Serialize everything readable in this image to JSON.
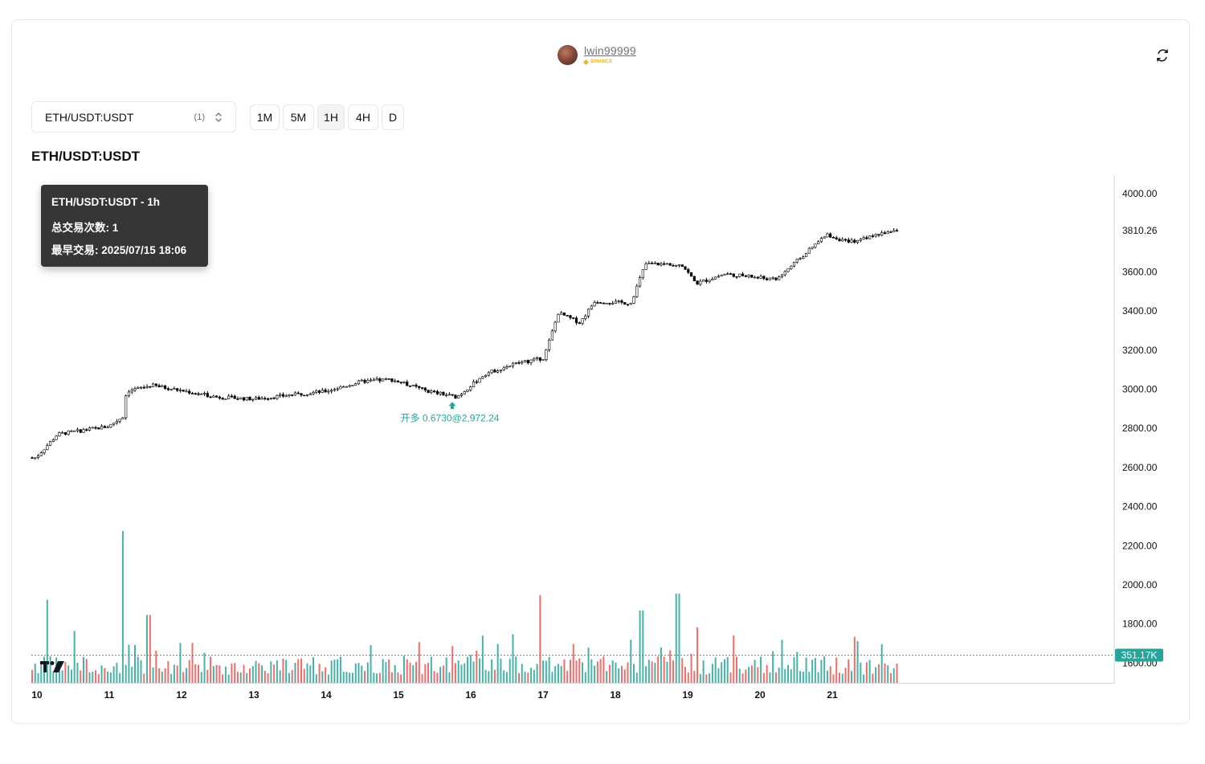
{
  "user": {
    "username": "lwin99999",
    "exchange": "BINANCE"
  },
  "header": {
    "refresh_icon": "refresh-icon"
  },
  "symbol_select": {
    "value": "ETH/USDT:USDT",
    "count": "(1)"
  },
  "timeframes": [
    {
      "label": "1M",
      "active": false
    },
    {
      "label": "5M",
      "active": false
    },
    {
      "label": "1H",
      "active": true
    },
    {
      "label": "4H",
      "active": false
    },
    {
      "label": "D",
      "active": false
    }
  ],
  "chart_title": "ETH/USDT:USDT",
  "tooltip": {
    "title": "ETH/USDT:USDT - 1h",
    "trades": "总交易次数: 1",
    "earliest": "最早交易: 2025/07/15 18:06"
  },
  "colors": {
    "up": "#26a69a",
    "down": "#ef5350",
    "candle": "#000000",
    "label_bg": "#26a69a"
  },
  "chart_data": {
    "type": "candlestick",
    "title": "",
    "x_ticks": [
      "10",
      "11",
      "12",
      "13",
      "14",
      "15",
      "16",
      "17",
      "18",
      "19",
      "20",
      "21"
    ],
    "y_ticks": [
      "4000.00",
      "3600.00",
      "3400.00",
      "3200.00",
      "3000.00",
      "2800.00",
      "2600.00",
      "2400.00",
      "2200.00",
      "2000.00",
      "1800.00",
      "1600.00"
    ],
    "ylim": [
      1600,
      4000
    ],
    "last_price": "3810.26",
    "last_volume": "351.17K",
    "close_path_by_day": [
      {
        "day": 10,
        "price": 2650
      },
      {
        "day": 10.3,
        "price": 2770
      },
      {
        "day": 11,
        "price": 2810
      },
      {
        "day": 11.2,
        "price": 2860
      },
      {
        "day": 11.25,
        "price": 2990
      },
      {
        "day": 11.6,
        "price": 3020
      },
      {
        "day": 12.5,
        "price": 2960
      },
      {
        "day": 13,
        "price": 2950
      },
      {
        "day": 14,
        "price": 2990
      },
      {
        "day": 14.5,
        "price": 3040
      },
      {
        "day": 14.9,
        "price": 3050
      },
      {
        "day": 15.4,
        "price": 2990
      },
      {
        "day": 15.8,
        "price": 2960
      },
      {
        "day": 16.2,
        "price": 3080
      },
      {
        "day": 16.6,
        "price": 3130
      },
      {
        "day": 17,
        "price": 3160
      },
      {
        "day": 17.2,
        "price": 3390
      },
      {
        "day": 17.5,
        "price": 3340
      },
      {
        "day": 17.7,
        "price": 3450
      },
      {
        "day": 18.2,
        "price": 3440
      },
      {
        "day": 18.4,
        "price": 3640
      },
      {
        "day": 18.9,
        "price": 3640
      },
      {
        "day": 19.1,
        "price": 3540
      },
      {
        "day": 19.5,
        "price": 3590
      },
      {
        "day": 20.2,
        "price": 3560
      },
      {
        "day": 20.5,
        "price": 3660
      },
      {
        "day": 20.9,
        "price": 3790
      },
      {
        "day": 21.2,
        "price": 3750
      },
      {
        "day": 21.8,
        "price": 3810
      }
    ],
    "volume_spikes_by_day": [
      {
        "day": 10.15,
        "value": 0.55
      },
      {
        "day": 11.2,
        "value": 1.0
      },
      {
        "day": 11.55,
        "value": 0.45
      },
      {
        "day": 16.95,
        "value": 0.58
      },
      {
        "day": 18.35,
        "value": 0.48
      },
      {
        "day": 18.85,
        "value": 0.59
      }
    ],
    "markers": [
      {
        "day": 15.75,
        "price": 2972.24,
        "label": "开多 0.6730@2,972.24",
        "direction": "up"
      }
    ]
  }
}
